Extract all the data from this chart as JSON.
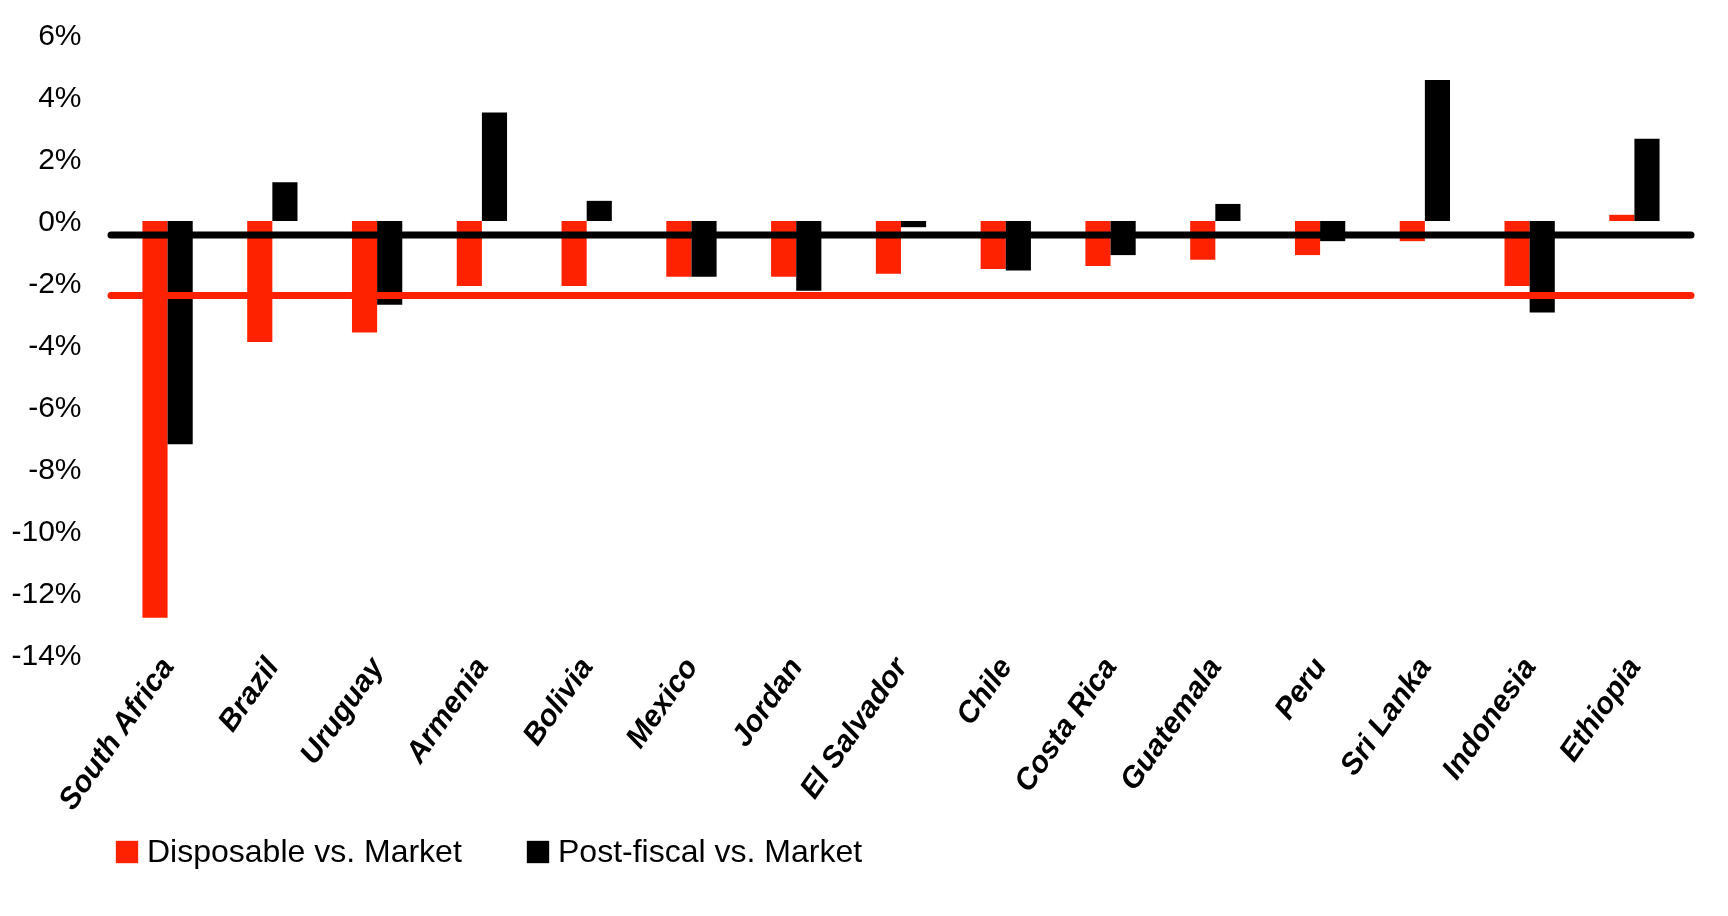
{
  "chart_data": {
    "type": "bar",
    "categories": [
      "South Africa",
      "Brazil",
      "Uruguay",
      "Armenia",
      "Bolivia",
      "Mexico",
      "Jordan",
      "El Salvador",
      "Chile",
      "Costa Rica",
      "Guatemala",
      "Peru",
      "Sri Lanka",
      "Indonesia",
      "Ethiopia"
    ],
    "series": [
      {
        "name": "Disposable vs. Market",
        "color": "#ff2200",
        "values": [
          -12.8,
          -3.9,
          -3.6,
          -2.1,
          -2.1,
          -1.8,
          -1.8,
          -1.7,
          -1.55,
          -1.45,
          -1.25,
          -1.1,
          -0.65,
          -2.1,
          0.2
        ]
      },
      {
        "name": "Post-fiscal vs. Market",
        "color": "#000000",
        "values": [
          -7.2,
          1.25,
          -2.7,
          3.5,
          0.65,
          -1.8,
          -2.25,
          -0.2,
          -1.6,
          -1.1,
          0.55,
          -0.65,
          4.55,
          -2.95,
          2.65
        ]
      }
    ],
    "ylim": [
      -14,
      6
    ],
    "yticks": [
      {
        "value": -14,
        "label": "-14%"
      },
      {
        "value": -12,
        "label": "-12%"
      },
      {
        "value": -10,
        "label": "-10%"
      },
      {
        "value": -8,
        "label": "-8%"
      },
      {
        "value": -6,
        "label": "-6%"
      },
      {
        "value": -4,
        "label": "-4%"
      },
      {
        "value": -2,
        "label": "-2%"
      },
      {
        "value": 0,
        "label": "0%"
      },
      {
        "value": 2,
        "label": "2%"
      },
      {
        "value": 4,
        "label": "4%"
      },
      {
        "value": 6,
        "label": "6%"
      }
    ],
    "ref_lines": [
      {
        "axis": "y",
        "value": -0.45,
        "color": "#000000"
      },
      {
        "axis": "y",
        "value": -2.4,
        "color": "#ff2200"
      }
    ],
    "grid": false,
    "legend": "bottom"
  }
}
